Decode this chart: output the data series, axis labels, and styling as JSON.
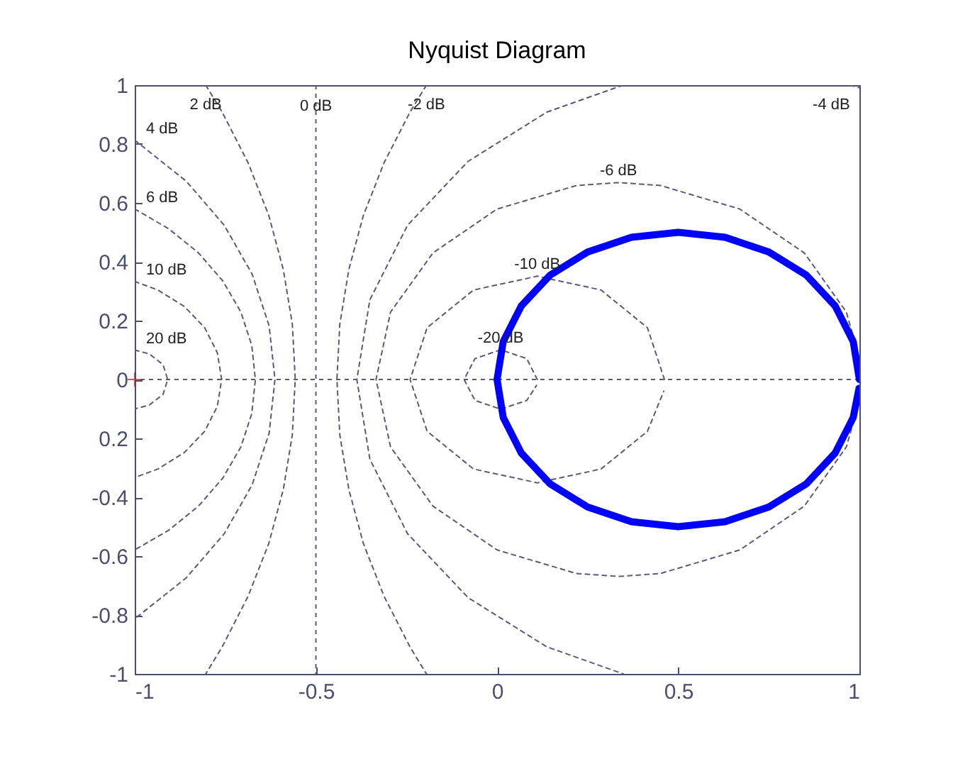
{
  "chart_data": {
    "type": "line",
    "title": "Nyquist Diagram",
    "xlim": [
      -1,
      1
    ],
    "xticks": [
      -1,
      -0.5,
      0,
      0.5,
      1
    ],
    "ylim": [
      -1,
      1
    ],
    "yticks": [
      -1,
      -0.8,
      -0.6,
      -0.4,
      {
        "value": -0.2,
        "label": "0.2"
      },
      0,
      0.2,
      0.4,
      0.6,
      0.8,
      1
    ],
    "series": [
      {
        "color": "#5a5a78",
        "line_style": "dashed",
        "x": [
          -1,
          -0.96,
          -0.922,
          -0.909,
          -0.922,
          -0.96,
          -1
        ],
        "values": [
          0.1,
          0.087,
          0.051,
          0,
          -0.051,
          -0.087,
          -0.1
        ]
      },
      {
        "color": "#5a5a78",
        "line_style": "dashed",
        "x": [
          -1,
          -0.936,
          -0.863,
          -0.807,
          -0.772,
          -0.76,
          -0.772,
          -0.807,
          -0.863,
          -0.936,
          -1
        ],
        "values": [
          0.333,
          0.304,
          0.248,
          0.176,
          0.091,
          0,
          -0.091,
          -0.176,
          -0.248,
          -0.304,
          -0.333
        ]
      },
      {
        "color": "#5a5a78",
        "line_style": "dashed",
        "x": [
          -1,
          -0.906,
          -0.824,
          -0.757,
          -0.707,
          -0.677,
          -0.667,
          -0.677,
          -0.707,
          -0.757,
          -0.824,
          -0.906,
          -1
        ],
        "values": [
          0.579,
          0.512,
          0.43,
          0.335,
          0.229,
          0.116,
          0,
          -0.116,
          -0.229,
          -0.335,
          -0.43,
          -0.512,
          -0.579
        ]
      },
      {
        "color": "#5a5a78",
        "line_style": "dashed",
        "x": [
          -1,
          -0.858,
          -0.753,
          -0.676,
          -0.629,
          -0.613,
          -0.629,
          -0.676,
          -0.753,
          -0.858,
          -1
        ],
        "values": [
          0.813,
          0.674,
          0.524,
          0.358,
          0.182,
          0,
          -0.182,
          -0.358,
          -0.524,
          -0.674,
          -0.813
        ]
      },
      {
        "color": "#5a5a78",
        "line_style": "dashed",
        "x": [
          -0.804,
          -0.759,
          -0.687,
          -0.63,
          -0.59,
          -0.565,
          -0.557,
          -0.565,
          -0.59,
          -0.63,
          -0.687,
          -0.759,
          -0.804
        ],
        "values": [
          1,
          0.909,
          0.736,
          0.557,
          0.374,
          0.188,
          0,
          -0.188,
          -0.374,
          -0.557,
          -0.736,
          -0.909,
          -1
        ]
      },
      {
        "color": "#5a5a78",
        "line_style": "dashed",
        "x": [
          -0.195,
          -0.24,
          -0.312,
          -0.369,
          -0.409,
          -0.434,
          -0.442,
          -0.434,
          -0.409,
          -0.369,
          -0.312,
          -0.24,
          -0.195
        ],
        "values": [
          1,
          0.909,
          0.736,
          0.557,
          0.374,
          0.188,
          0,
          -0.188,
          -0.374,
          -0.557,
          -0.736,
          -0.909,
          -1
        ]
      },
      {
        "color": "#5a5a78",
        "line_style": "dashed",
        "x": [
          0.974,
          1,
          null,
          0.348,
          0.137,
          -0.08,
          -0.247,
          -0.351,
          -0.387,
          -0.351,
          -0.247,
          -0.08,
          0.137,
          0.348
        ],
        "values": [
          1,
          0.991,
          null,
          1,
          0.908,
          0.741,
          0.524,
          0.271,
          0,
          -0.271,
          -0.524,
          -0.741,
          -0.908,
          -1
        ]
      },
      {
        "color": "#5a5a78",
        "line_style": "dashed",
        "x": [
          1,
          0.964,
          0.848,
          0.67,
          0.451,
          0.335,
          0.219,
          0,
          -0.177,
          -0.294,
          -0.334,
          -0.294,
          -0.177,
          0,
          0.219,
          0.335,
          0.451,
          0.67,
          0.848,
          0.964,
          1
        ],
        "values": [
          0.073,
          0.229,
          0.43,
          0.579,
          0.659,
          0.669,
          0.659,
          0.579,
          0.43,
          0.229,
          0,
          -0.229,
          -0.43,
          -0.579,
          -0.659,
          -0.669,
          -0.659,
          -0.579,
          -0.43,
          -0.229,
          -0.073
        ]
      },
      {
        "color": "#5a5a78",
        "line_style": "dashed",
        "x": [
          0.462,
          0.415,
          0.287,
          0.111,
          -0.065,
          -0.193,
          -0.24,
          -0.193,
          -0.065,
          0.111,
          0.287,
          0.415,
          0.46
        ],
        "values": [
          0,
          0.176,
          0.304,
          0.351,
          0.304,
          0.176,
          0,
          -0.176,
          -0.304,
          -0.351,
          -0.304,
          -0.176,
          -0.04
        ]
      },
      {
        "color": "#5a5a78",
        "line_style": "dashed",
        "x": [
          0.111,
          0.082,
          0.01,
          -0.061,
          -0.091,
          -0.061,
          0.01,
          0.082,
          0.109
        ],
        "values": [
          0,
          0.071,
          0.101,
          0.071,
          0,
          -0.071,
          -0.101,
          -0.071,
          -0.02
        ]
      },
      {
        "color": "#0000ff",
        "line_style": "solid",
        "x": [
          1,
          0.983,
          0.933,
          0.854,
          0.75,
          0.629,
          0.5,
          0.371,
          0.25,
          0.146,
          0.067,
          0.017,
          0,
          0.017,
          0.067,
          0.146,
          0.25,
          0.371,
          0.5,
          0.629,
          0.75,
          0.854,
          0.933,
          0.983,
          0.999
        ],
        "values": [
          0,
          0.129,
          0.25,
          0.354,
          0.433,
          0.483,
          0.5,
          0.483,
          0.433,
          0.354,
          0.25,
          0.129,
          0,
          -0.129,
          -0.25,
          -0.354,
          -0.433,
          -0.483,
          -0.5,
          -0.483,
          -0.433,
          -0.354,
          -0.25,
          -0.129,
          -0.03
        ]
      },
      {
        "type": "scatter",
        "color": "#ff0000",
        "marker": "cross",
        "x": [
          -1
        ],
        "values": [
          0
        ]
      }
    ],
    "ref_lines": [
      {
        "axis": "x",
        "value": -0.5,
        "label": "0 dB",
        "color": "#5a5a78",
        "line_style": "dashed"
      },
      {
        "axis": "y",
        "value": 0,
        "label": null,
        "color": "#5a5a78",
        "line_style": "dashed"
      }
    ],
    "annotations": [
      {
        "text": "20 dB",
        "x": -1,
        "y": 0.1
      },
      {
        "text": "10 dB",
        "x": -1,
        "y": 0.333
      },
      {
        "text": "6 dB",
        "x": -1,
        "y": 0.579
      },
      {
        "text": "4 dB",
        "x": -1,
        "y": 0.813
      },
      {
        "text": "2 dB",
        "x": -0.804,
        "y": 1
      },
      {
        "text": "-2 dB",
        "x": -0.195,
        "y": 1
      },
      {
        "text": "-4 dB",
        "x": 0.974,
        "y": 1
      },
      {
        "text": "-6 dB",
        "x": 0.335,
        "y": 0.669
      },
      {
        "text": "-10 dB",
        "x": 0.111,
        "y": 0.351
      },
      {
        "text": "-20 dB",
        "x": 0.01,
        "y": 0.101
      }
    ]
  }
}
